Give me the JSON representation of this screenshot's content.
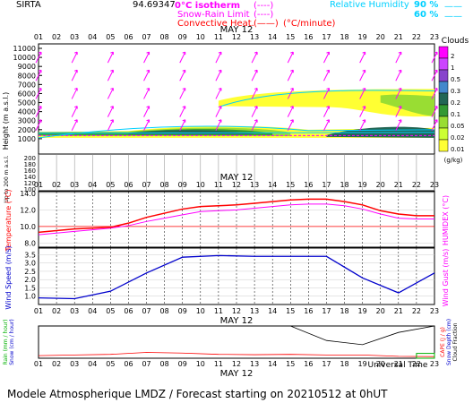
{
  "header": {
    "station": "SIRTA",
    "coords": "94.69347",
    "legend_isotherm": "0°C isotherm",
    "legend_snow": "Snow-Rain Limit",
    "legend_conv": "Convective Heat.",
    "legend_conv_unit": "(°C/minute)",
    "legend_rh": "Relative Humidity",
    "rh_90": "90 %",
    "rh_60": "60 %"
  },
  "date_label": "MAY 12",
  "hours": [
    "01",
    "02",
    "03",
    "04",
    "05",
    "06",
    "07",
    "08",
    "09",
    "10",
    "11",
    "12",
    "13",
    "14",
    "15",
    "16",
    "17",
    "18",
    "19",
    "20",
    "21",
    "22",
    "23"
  ],
  "footer": {
    "universal_time": "Universal Time",
    "forecast": "Modele Atmospherique LMDZ / Forecast starting on 20210512 at 0hUT"
  },
  "colors": {
    "magenta": "#ff00ff",
    "cyan": "#00e0ff",
    "red": "#ff0000",
    "blue": "#0000cc",
    "green": "#00b000"
  },
  "cloud_legend": {
    "title": "Clouds",
    "unit": "(g/kg)",
    "levels": [
      "0.01",
      "0.02",
      "0.05",
      "0.1",
      "0.2",
      "0.3",
      "0.5",
      "1",
      "2"
    ],
    "colors": [
      "#ffff33",
      "#ccff33",
      "#99dd33",
      "#339933",
      "#226655",
      "#4488cc",
      "#8844cc",
      "#cc44ff",
      "#ff00ff"
    ]
  },
  "chart_data": [
    {
      "type": "heatmap",
      "title": "Height (m a.s.l.)",
      "ylabel": "Height (m a.s.l.)",
      "ylabel_low": "Up to 200 m a.s.l.",
      "yticks_upper": [
        "11000",
        "10000",
        "9000",
        "8000",
        "7000",
        "6000",
        "5000",
        "4000",
        "3000",
        "2000",
        "1000"
      ],
      "yticks_lower": [
        "200",
        "180",
        "160",
        "140",
        "120",
        "100"
      ],
      "clouds": [
        {
          "name": "low cloud layer",
          "height_m": [
            1200,
            2000
          ],
          "hours": [
            1,
            23
          ],
          "max_gkg": 0.5
        },
        {
          "name": "mid cloud layer",
          "height_m": [
            4000,
            6500
          ],
          "hours": [
            11,
            23
          ],
          "max_gkg": 0.2
        }
      ]
    },
    {
      "type": "line",
      "ylabel": "Temperature (°C)",
      "ylabel_right": "HUMIDEX (°C)",
      "yticks": [
        "8.0",
        "10.0",
        "12.0",
        "14.0"
      ],
      "ylim": [
        7.5,
        14.2
      ],
      "x": [
        1,
        2,
        3,
        4,
        5,
        6,
        7,
        8,
        9,
        10,
        11,
        12,
        13,
        14,
        15,
        16,
        17,
        18,
        19,
        20,
        21,
        22,
        23
      ],
      "series": [
        {
          "values": [
            9.3,
            9.5,
            9.7,
            9.8,
            9.9,
            10.4,
            11.1,
            11.6,
            12.1,
            12.4,
            12.5,
            12.6,
            12.8,
            13.0,
            13.2,
            13.3,
            13.3,
            13.0,
            12.6,
            11.9,
            11.5,
            11.3,
            11.3
          ]
        },
        {
          "values": [
            9.0,
            9.2,
            9.4,
            9.6,
            9.8,
            10.1,
            10.6,
            11.0,
            11.4,
            11.8,
            11.9,
            12.0,
            12.2,
            12.4,
            12.6,
            12.7,
            12.7,
            12.5,
            12.1,
            11.5,
            11.0,
            10.9,
            10.9
          ]
        }
      ]
    },
    {
      "type": "line",
      "ylabel": "Wind Speed (m/s)",
      "ylabel_right": "Wind Gust (m/s)",
      "yticks": [
        "1.0",
        "1.5",
        "2.0",
        "2.5",
        "3.0",
        "3.5"
      ],
      "ylim": [
        0.5,
        3.9
      ],
      "x": [
        1,
        3,
        5,
        7,
        9,
        11,
        13,
        15,
        17,
        19,
        21,
        23
      ],
      "values": [
        0.9,
        0.85,
        1.3,
        2.4,
        3.35,
        3.45,
        3.4,
        3.4,
        3.4,
        2.1,
        1.2,
        2.4
      ]
    },
    {
      "type": "line",
      "ylabel": "Rain (mm/hour) / Snow (cm/hour)",
      "ylabel_right": "CAPE (J/g) / Snow Depth (cm) / Cloud Fraction",
      "x": [
        1,
        3,
        5,
        7,
        9,
        11,
        13,
        15,
        17,
        19,
        21,
        23
      ],
      "series": [
        {
          "name": "Cloud Fraction",
          "values": [
            1.0,
            1.0,
            1.0,
            1.0,
            1.0,
            1.0,
            1.0,
            1.0,
            0.55,
            0.42,
            0.8,
            1.0
          ]
        },
        {
          "name": "CAPE",
          "values": [
            0.08,
            0.1,
            0.12,
            0.18,
            0.16,
            0.12,
            0.11,
            0.12,
            0.1,
            0.1,
            0.06,
            0.05
          ]
        },
        {
          "name": "Rain",
          "values": [
            0,
            0,
            0,
            0,
            0,
            0,
            0,
            0,
            0,
            0,
            0,
            0.15
          ]
        }
      ]
    }
  ]
}
